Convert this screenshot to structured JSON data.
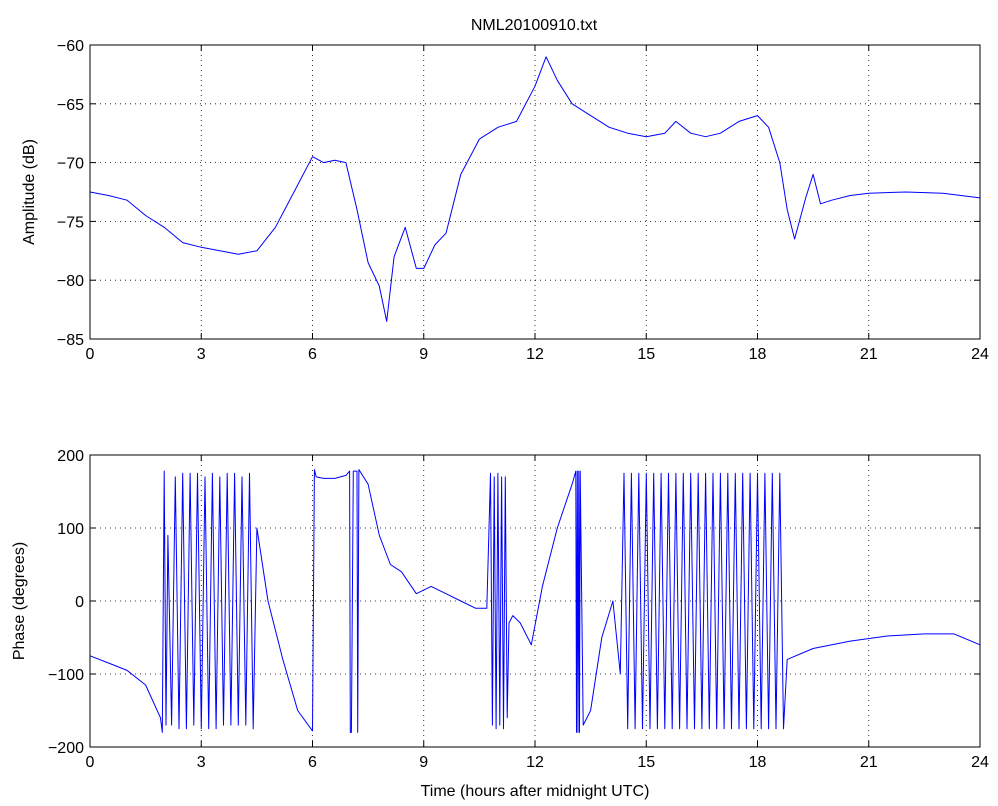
{
  "figure_title": "NML20100910.txt",
  "chart_data": [
    {
      "type": "line",
      "title": "NML20100910.txt",
      "xlabel": "",
      "ylabel": "Amplitude (dB)",
      "xlim": [
        0,
        24
      ],
      "ylim": [
        -85,
        -60
      ],
      "grid": true,
      "xticks": [
        0,
        3,
        6,
        9,
        12,
        15,
        18,
        21,
        24
      ],
      "yticks": [
        -85,
        -80,
        -75,
        -70,
        -65,
        -60
      ],
      "xtick_labels": [
        "0",
        "3",
        "6",
        "9",
        "12",
        "15",
        "18",
        "21",
        "24"
      ],
      "ytick_labels": [
        "−85",
        "−80",
        "−75",
        "−70",
        "−65",
        "−60"
      ],
      "series": [
        {
          "color": "#0000ff",
          "x": [
            0,
            0.5,
            1,
            1.5,
            2,
            2.5,
            3,
            3.5,
            4,
            4.5,
            5,
            5.5,
            6,
            6.3,
            6.6,
            6.9,
            7.2,
            7.5,
            7.8,
            8,
            8.2,
            8.5,
            8.8,
            9,
            9.3,
            9.6,
            10,
            10.5,
            11,
            11.5,
            12,
            12.3,
            12.6,
            13,
            13.5,
            14,
            14.5,
            15,
            15.5,
            15.8,
            16.2,
            16.6,
            17,
            17.5,
            18,
            18.3,
            18.6,
            18.8,
            19,
            19.3,
            19.5,
            19.7,
            20,
            20.5,
            21,
            22,
            23,
            24
          ],
          "values": [
            -72.5,
            -72.8,
            -73.2,
            -74.5,
            -75.5,
            -76.8,
            -77.2,
            -77.5,
            -77.8,
            -77.5,
            -75.5,
            -72.5,
            -69.5,
            -70.0,
            -69.8,
            -70.0,
            -74.0,
            -78.5,
            -80.5,
            -83.5,
            -78.0,
            -75.5,
            -79.0,
            -79.0,
            -77.0,
            -76.0,
            -71.0,
            -68.0,
            -67.0,
            -66.5,
            -63.5,
            -61.0,
            -63.0,
            -65.0,
            -66.0,
            -67.0,
            -67.5,
            -67.8,
            -67.5,
            -66.5,
            -67.5,
            -67.8,
            -67.5,
            -66.5,
            -66.0,
            -67.0,
            -70.0,
            -74.0,
            -76.5,
            -73.0,
            -71.0,
            -73.5,
            -73.2,
            -72.8,
            -72.6,
            -72.5,
            -72.6,
            -73.0
          ]
        }
      ]
    },
    {
      "type": "line",
      "title": "",
      "xlabel": "Time (hours after midnight UTC)",
      "ylabel": "Phase (degrees)",
      "xlim": [
        0,
        24
      ],
      "ylim": [
        -200,
        200
      ],
      "grid": true,
      "xticks": [
        0,
        3,
        6,
        9,
        12,
        15,
        18,
        21,
        24
      ],
      "yticks": [
        -200,
        -100,
        0,
        100,
        200
      ],
      "xtick_labels": [
        "0",
        "3",
        "6",
        "9",
        "12",
        "15",
        "18",
        "21",
        "24"
      ],
      "ytick_labels": [
        "−200",
        "−100",
        "0",
        "100",
        "200"
      ],
      "series": [
        {
          "color": "#0000ff",
          "x": [
            0,
            0.5,
            1,
            1.5,
            1.9,
            1.95,
            2.0,
            2.05,
            2.1,
            2.2,
            2.3,
            2.4,
            2.5,
            2.6,
            2.7,
            2.8,
            2.9,
            3.0,
            3.1,
            3.2,
            3.3,
            3.4,
            3.5,
            3.6,
            3.7,
            3.8,
            3.9,
            4.0,
            4.1,
            4.2,
            4.3,
            4.4,
            4.5,
            4.8,
            5.2,
            5.6,
            6.0,
            6.05,
            6.1,
            6.3,
            6.6,
            6.9,
            7.0,
            7.02,
            7.05,
            7.1,
            7.2,
            7.22,
            7.25,
            7.5,
            7.8,
            8.1,
            8.4,
            8.8,
            9.2,
            9.6,
            10.0,
            10.4,
            10.7,
            10.8,
            10.85,
            10.9,
            10.95,
            11.0,
            11.05,
            11.1,
            11.15,
            11.2,
            11.25,
            11.3,
            11.4,
            11.6,
            11.9,
            12.2,
            12.6,
            13.0,
            13.1,
            13.12,
            13.14,
            13.16,
            13.18,
            13.2,
            13.22,
            13.3,
            13.5,
            13.8,
            14.1,
            14.3,
            14.4,
            14.5,
            14.6,
            14.7,
            14.8,
            14.9,
            15.0,
            15.1,
            15.2,
            15.3,
            15.4,
            15.5,
            15.6,
            15.7,
            15.8,
            15.9,
            16.0,
            16.1,
            16.2,
            16.3,
            16.4,
            16.5,
            16.6,
            16.7,
            16.8,
            16.9,
            17.0,
            17.1,
            17.2,
            17.3,
            17.4,
            17.5,
            17.6,
            17.7,
            17.8,
            17.9,
            18.0,
            18.1,
            18.2,
            18.3,
            18.4,
            18.5,
            18.6,
            18.7,
            18.8,
            19.5,
            20.5,
            21.5,
            22.5,
            23.3,
            24
          ],
          "values": [
            -75,
            -85,
            -95,
            -115,
            -160,
            -180,
            178,
            -170,
            90,
            -170,
            170,
            -175,
            175,
            -175,
            175,
            -170,
            175,
            -175,
            170,
            -175,
            175,
            -175,
            170,
            -170,
            175,
            -170,
            175,
            -170,
            170,
            -170,
            175,
            -175,
            100,
            0,
            -80,
            -150,
            -178,
            180,
            170,
            168,
            168,
            172,
            178,
            -180,
            -180,
            178,
            178,
            -180,
            180,
            160,
            90,
            50,
            40,
            10,
            20,
            10,
            0,
            -10,
            -10,
            175,
            -170,
            170,
            -175,
            175,
            -170,
            170,
            -175,
            170,
            -160,
            -30,
            -20,
            -30,
            -60,
            20,
            100,
            160,
            178,
            -180,
            178,
            -180,
            178,
            -180,
            178,
            -170,
            -150,
            -50,
            0,
            -100,
            175,
            -175,
            175,
            -175,
            175,
            -175,
            175,
            -175,
            175,
            -175,
            175,
            -175,
            175,
            -175,
            175,
            -175,
            175,
            -175,
            175,
            -175,
            175,
            -175,
            175,
            -175,
            175,
            -175,
            175,
            -175,
            175,
            -175,
            175,
            -175,
            175,
            -175,
            175,
            -175,
            175,
            -175,
            175,
            -175,
            175,
            -175,
            175,
            -175,
            -80,
            -65,
            -55,
            -48,
            -45,
            -45,
            -60
          ]
        }
      ]
    }
  ]
}
